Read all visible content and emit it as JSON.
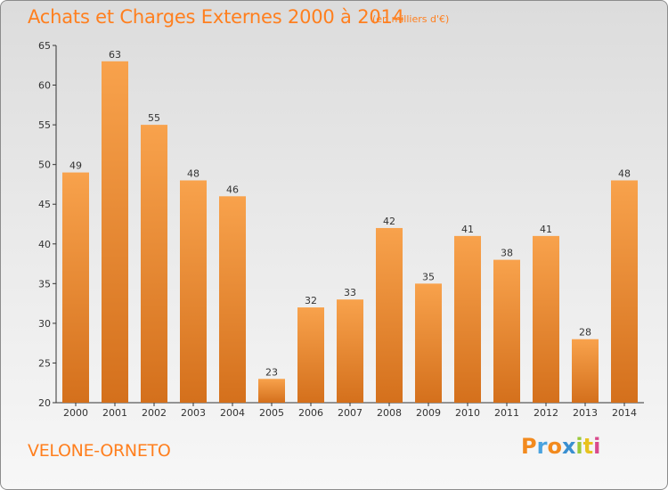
{
  "header": {
    "title": "Achats et Charges Externes 2000 à 2014",
    "unit": "(en milliers d'€)"
  },
  "footer": {
    "commune": "VELONE-ORNETO",
    "logo_text": "Proxiti"
  },
  "colors": {
    "accent": "#ff7f1e",
    "bar_top": "#f8a24c",
    "bar_bottom": "#d4701c",
    "logo": [
      "#f28a1e",
      "#4aa3df",
      "#f28a1e",
      "#3a8fd0",
      "#9bc93a",
      "#e8c21e",
      "#d94a8c"
    ]
  },
  "chart_data": {
    "type": "bar",
    "title": "Achats et Charges Externes 2000 à 2014",
    "subtitle": "(en milliers d'€)",
    "categories": [
      "2000",
      "2001",
      "2002",
      "2003",
      "2004",
      "2005",
      "2006",
      "2007",
      "2008",
      "2009",
      "2010",
      "2011",
      "2012",
      "2013",
      "2014"
    ],
    "values": [
      49,
      63,
      55,
      48,
      46,
      23,
      32,
      33,
      42,
      35,
      41,
      38,
      41,
      28,
      48
    ],
    "ylim": [
      20,
      65
    ],
    "yticks": [
      20,
      25,
      30,
      35,
      40,
      45,
      50,
      55,
      60,
      65
    ],
    "xlabel": "",
    "ylabel": "",
    "grid": false,
    "data_labels": true
  }
}
